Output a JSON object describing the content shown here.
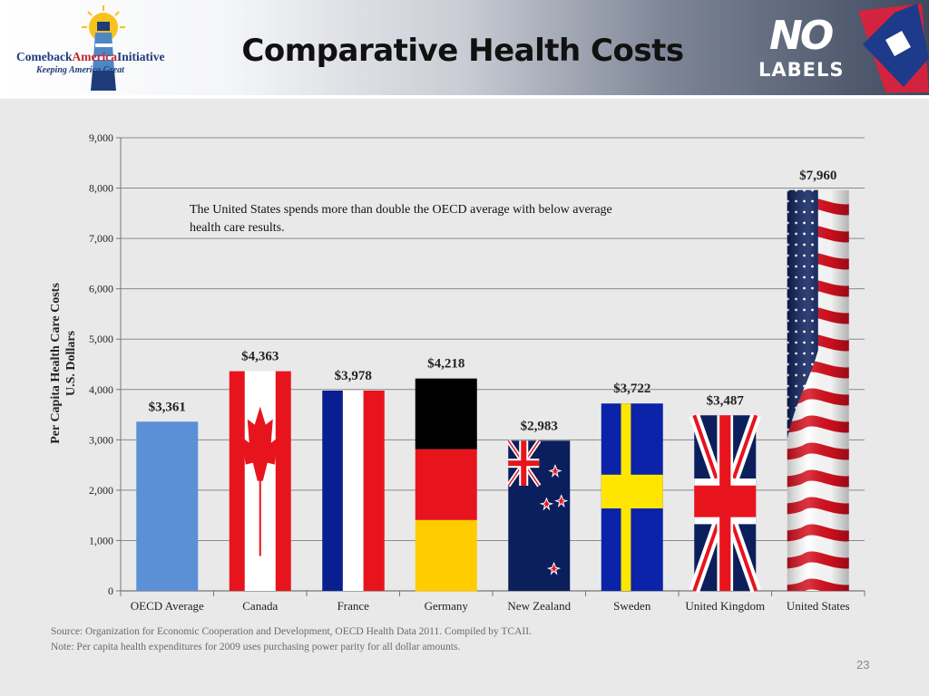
{
  "slide": {
    "title": "Comparative Health Costs",
    "page_number": "23",
    "logo_left": {
      "name_part1": "Comeback",
      "name_part2": "America",
      "name_part3": "Initiative",
      "tagline": "Keeping America Great"
    },
    "logo_right": {
      "line1": "NO",
      "line2": "LABELS"
    },
    "source_line1": "Source: Organization  for Economic Cooperation and Development,  OECD Health  Data 2011.  Compiled by TCAII.",
    "source_line2": "Note: Per capita health  expenditures  for 2009  uses purchasing power parity for all  dollar amounts."
  },
  "chart_data": {
    "type": "bar",
    "title": "",
    "ylabel_line1": "Per Capita Health Care Costs",
    "ylabel_line2": "U.S. Dollars",
    "xlabel": "",
    "ylim": [
      0,
      9000
    ],
    "yticks": [
      "0",
      "1,000",
      "2,000",
      "3,000",
      "4,000",
      "5,000",
      "6,000",
      "7,000",
      "8,000",
      "9,000"
    ],
    "grid": true,
    "annotation_line1": "The United States spends more than double the OECD average with below average",
    "annotation_line2": "health care results.",
    "categories": [
      "OECD Average",
      "Canada",
      "France",
      "Germany",
      "New Zealand",
      "Sweden",
      "United Kingdom",
      "United States"
    ],
    "values": [
      3361,
      4363,
      3978,
      4218,
      2983,
      3722,
      3487,
      7960
    ],
    "value_labels": [
      "$3,361",
      "$4,363",
      "$3,978",
      "$4,218",
      "$2,983",
      "$3,722",
      "$3,487",
      "$7,960"
    ],
    "bar_fills": [
      "plain",
      "canada-flag",
      "france-flag",
      "germany-flag",
      "new-zealand-flag",
      "sweden-flag",
      "uk-flag",
      "us-flag"
    ],
    "colors": {
      "oecd": "#5b8fd6",
      "red": "#e8141d",
      "blue": "#0a1f8f",
      "black": "#000000",
      "gold": "#ffcc00",
      "sweden_blue": "#0a23a8",
      "sweden_yellow": "#ffe600",
      "navy": "#0b1f5c"
    }
  }
}
